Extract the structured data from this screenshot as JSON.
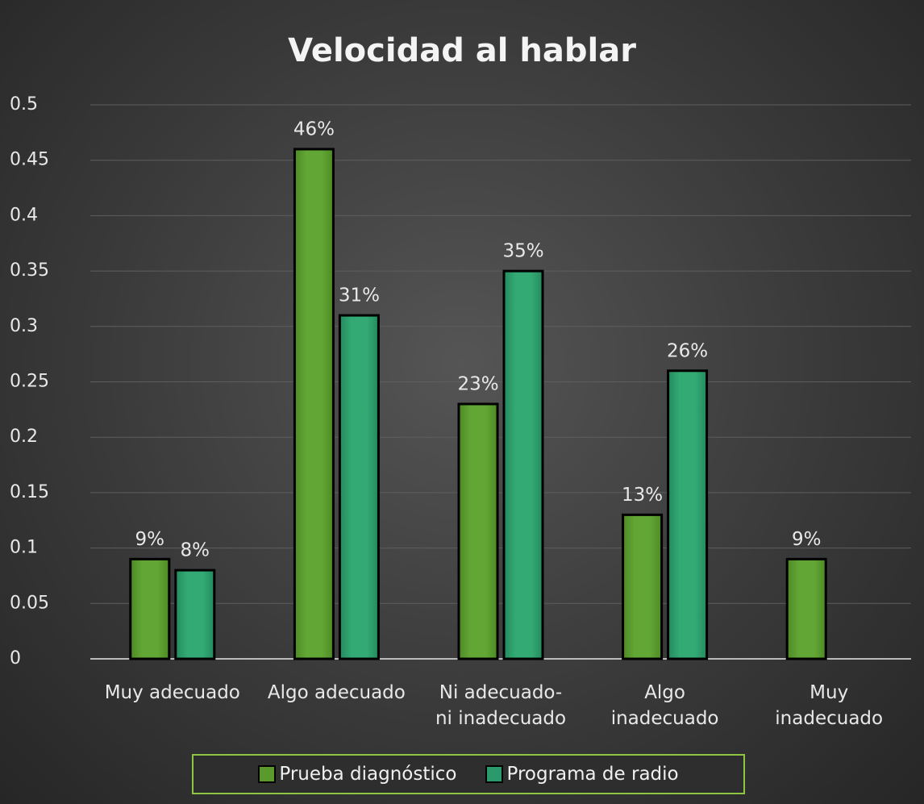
{
  "chart_data": {
    "type": "bar",
    "title": "Velocidad al hablar",
    "categories": [
      "Muy adecuado",
      "Algo adecuado",
      "Ni adecuado-\nni inadecuado",
      "Algo\ninadecuado",
      "Muy\ninadecuado"
    ],
    "series": [
      {
        "name": "Prueba diagnóstico",
        "color": "#5a9a2c",
        "values": [
          0.09,
          0.46,
          0.23,
          0.13,
          0.09
        ],
        "value_labels": [
          "9%",
          "46%",
          "23%",
          "13%",
          "9%"
        ]
      },
      {
        "name": "Programa de radio",
        "color": "#2a9a6c",
        "values": [
          0.08,
          0.31,
          0.35,
          0.26,
          null
        ],
        "value_labels": [
          "8%",
          "31%",
          "35%",
          "26%",
          null
        ]
      }
    ],
    "ylim": [
      0,
      0.5
    ],
    "yticks": [
      0,
      0.05,
      0.1,
      0.15,
      0.2,
      0.25,
      0.3,
      0.35,
      0.4,
      0.45,
      0.5
    ],
    "grid": true,
    "legend": "bottom"
  }
}
